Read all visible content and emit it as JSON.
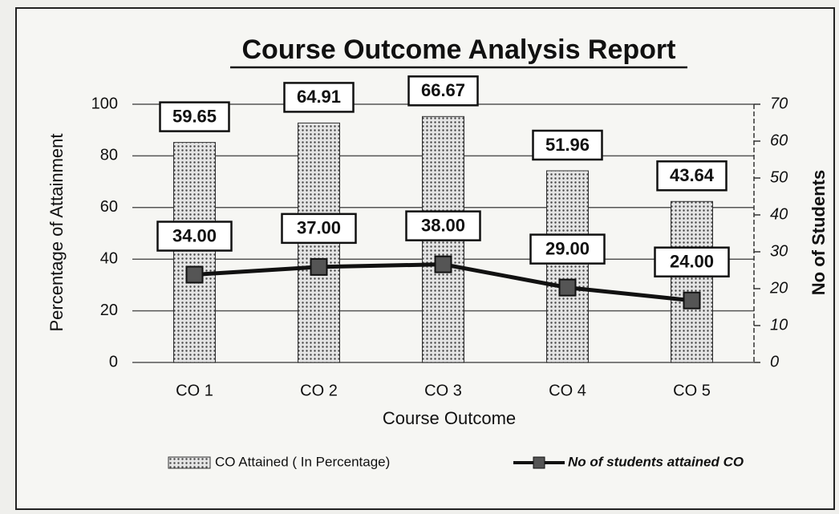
{
  "chart_data": {
    "type": "bar",
    "title": "Course Outcome Analysis Report",
    "xlabel": "Course Outcome",
    "ylabel": "Percentage of Attainment",
    "y2label": "No of Students",
    "categories": [
      "CO 1",
      "CO 2",
      "CO 3",
      "CO 4",
      "CO 5"
    ],
    "series": [
      {
        "name": "CO Attained ( In Percentage)",
        "type": "bar",
        "axis": "y2",
        "color": "#c8c8c8",
        "values": [
          59.65,
          64.91,
          66.67,
          51.96,
          43.64
        ]
      },
      {
        "name": "No of students attained CO",
        "type": "line",
        "axis": "y",
        "color": "#111111",
        "values": [
          34,
          37,
          38,
          29,
          24
        ],
        "value_labels": [
          "34.00",
          "37.00",
          "38.00",
          "29.00",
          "24.00"
        ]
      }
    ],
    "ylim": [
      0,
      100
    ],
    "yticks": [
      0,
      20,
      40,
      60,
      80,
      100
    ],
    "y2lim": [
      0,
      70
    ],
    "y2ticks": [
      0,
      10,
      20,
      30,
      40,
      50,
      60,
      70
    ],
    "grid": true,
    "legend": "bottom"
  }
}
